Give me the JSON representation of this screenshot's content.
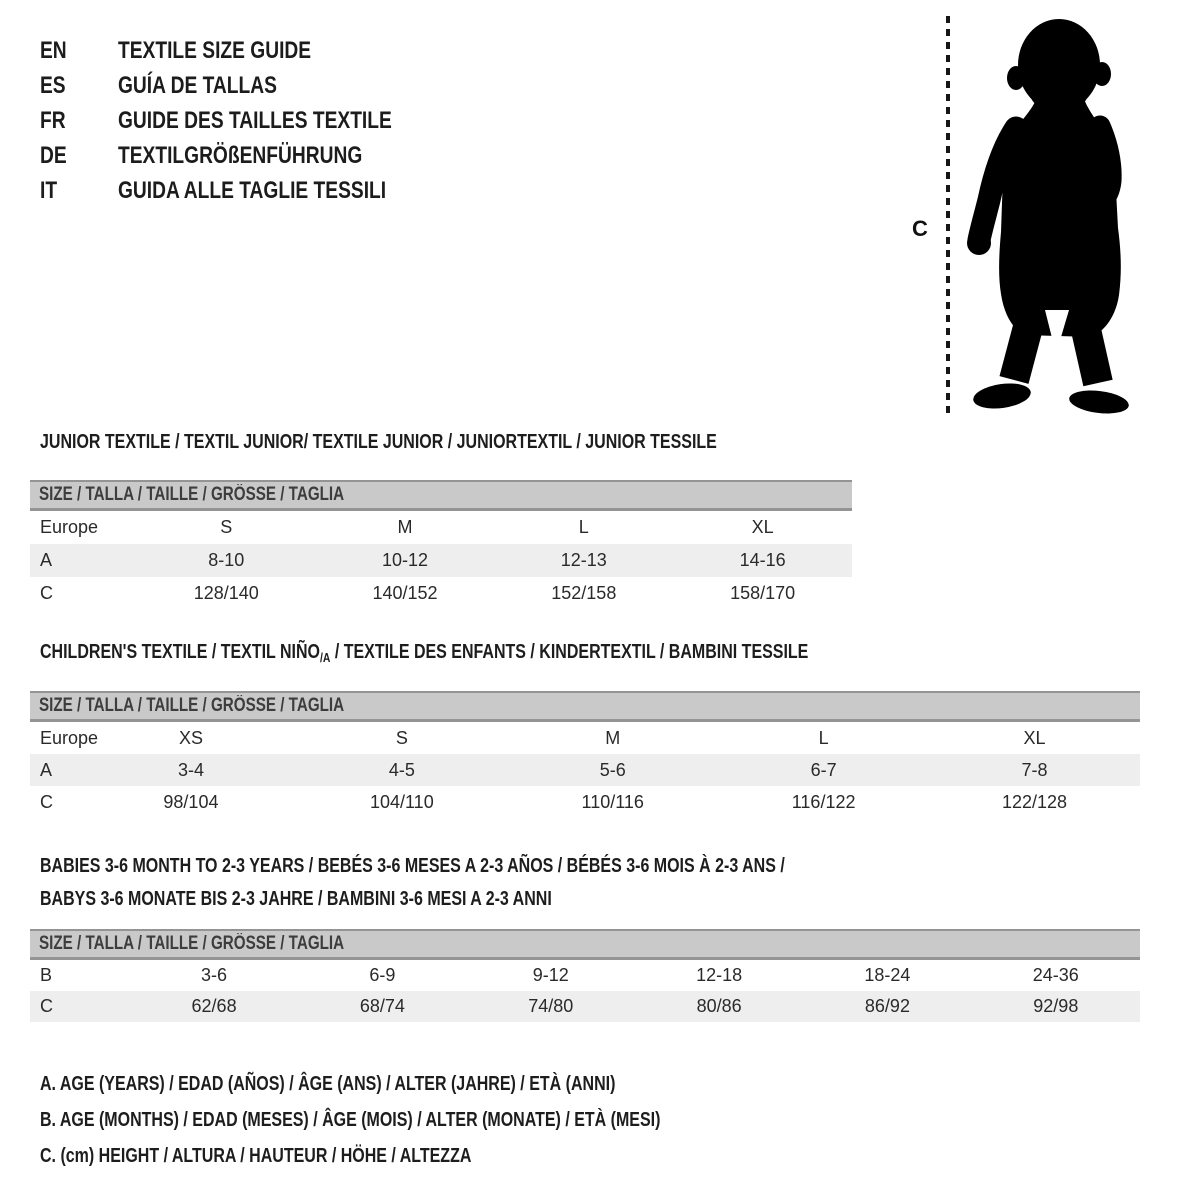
{
  "colors": {
    "bar_fill": "#c9c9c9",
    "bar_border": "#949494",
    "bar_text": "#3d3d3d",
    "band": "#efeeee",
    "silhouette": "#000000"
  },
  "languages": {
    "items": [
      {
        "code": "EN",
        "label": "TEXTILE SIZE GUIDE"
      },
      {
        "code": "ES",
        "label": "GUÍA DE TALLAS"
      },
      {
        "code": "FR",
        "label": "GUIDE DES TAILLES TEXTILE"
      },
      {
        "code": "DE",
        "label": "TEXTILGRÖßENFÜHRUNG"
      },
      {
        "code": "IT",
        "label": "GUIDA ALLE TAGLIE TESSILI"
      }
    ]
  },
  "figure": {
    "measure_label": "C",
    "image": "toddler-silhouette"
  },
  "junior": {
    "title": "JUNIOR TEXTILE / TEXTIL JUNIOR/ TEXTILE JUNIOR / JUNIORTEXTIL / JUNIOR TESSILE",
    "size_header": "SIZE / TALLA / TAILLE / GRÖSSE / TAGLIA",
    "rows": [
      {
        "label": "Europe",
        "values": [
          "S",
          "M",
          "L",
          "XL"
        ],
        "shaded": false
      },
      {
        "label": "A",
        "values": [
          "8-10",
          "10-12",
          "12-13",
          "14-16"
        ],
        "shaded": true
      },
      {
        "label": "C",
        "values": [
          "128/140",
          "140/152",
          "152/158",
          "158/170"
        ],
        "shaded": false
      }
    ]
  },
  "children": {
    "title_pre": "CHILDREN'S TEXTILE / TEXTIL NIÑO",
    "title_sub": "/A",
    "title_post": " / TEXTILE DES ENFANTS / KINDERTEXTIL / BAMBINI TESSILE",
    "size_header": "SIZE / TALLA / TAILLE / GRÖSSE / TAGLIA",
    "rows": [
      {
        "label": "Europe",
        "values": [
          "XS",
          "S",
          "M",
          "L",
          "XL"
        ],
        "shaded": false
      },
      {
        "label": "A",
        "values": [
          "3-4",
          "4-5",
          "5-6",
          "6-7",
          "7-8"
        ],
        "shaded": true
      },
      {
        "label": "C",
        "values": [
          "98/104",
          "104/110",
          "110/116",
          "116/122",
          "122/128"
        ],
        "shaded": false
      }
    ]
  },
  "babies": {
    "title_line1": "BABIES 3-6 MONTH TO 2-3 YEARS / BEBÉS 3-6 MESES A 2-3 AÑOS / BÉBÉS 3-6 MOIS À 2-3 ANS /",
    "title_line2": "BABYS 3-6 MONATE BIS 2-3 JAHRE / BAMBINI 3-6 MESI A 2-3 ANNI",
    "size_header": "SIZE / TALLA / TAILLE / GRÖSSE / TAGLIA",
    "rows": [
      {
        "label": "B",
        "values": [
          "3-6",
          "6-9",
          "9-12",
          "12-18",
          "18-24",
          "24-36"
        ],
        "shaded": false
      },
      {
        "label": "C",
        "values": [
          "62/68",
          "68/74",
          "74/80",
          "80/86",
          "86/92",
          "92/98"
        ],
        "shaded": true
      }
    ]
  },
  "legend": {
    "lines": [
      "A. AGE (YEARS) / EDAD (AÑOS) / ÂGE (ANS) / ALTER (JAHRE) / ETÀ (ANNI)",
      "B. AGE (MONTHS) / EDAD (MESES) / ÂGE (MOIS) / ALTER (MONATE) / ETÀ (MESI)",
      "C. (cm) HEIGHT / ALTURA / HAUTEUR / HÖHE / ALTEZZA"
    ]
  }
}
